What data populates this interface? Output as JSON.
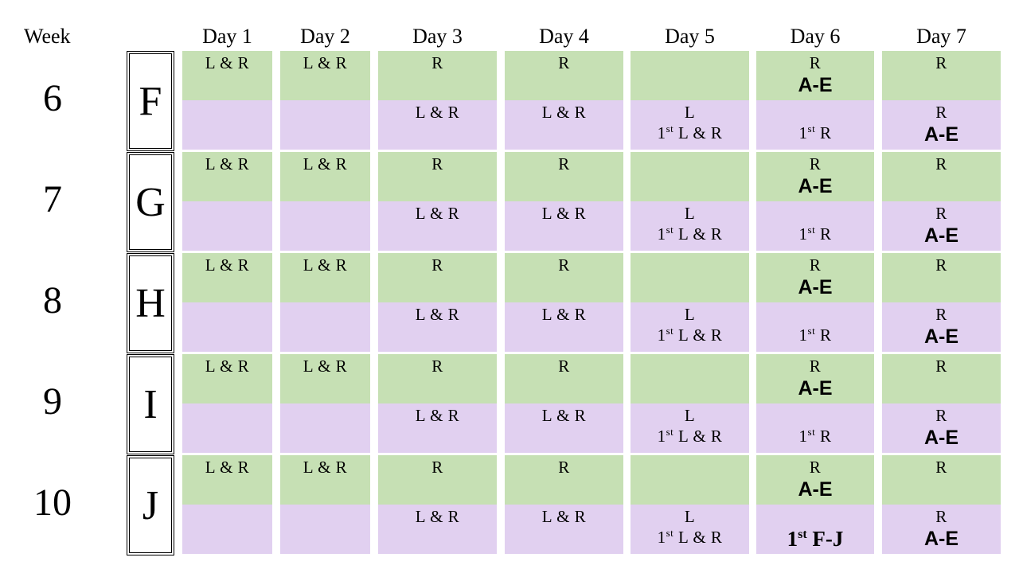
{
  "header": {
    "week_label": "Week",
    "days": [
      "Day 1",
      "Day 2",
      "Day 3",
      "Day 4",
      "Day 5",
      "Day 6",
      "Day 7"
    ]
  },
  "colors": {
    "green": "#c6e0b4",
    "purple": "#e1d0f0"
  },
  "weeks": [
    {
      "number": "6",
      "letter": "F",
      "last_day6_bottom": "1st R"
    },
    {
      "number": "7",
      "letter": "G",
      "last_day6_bottom": "1st R"
    },
    {
      "number": "8",
      "letter": "H",
      "last_day6_bottom": "1st R"
    },
    {
      "number": "9",
      "letter": "I",
      "last_day6_bottom": "1st R"
    },
    {
      "number": "10",
      "letter": "J",
      "last_day6_bottom": "1st F-J"
    }
  ],
  "cell_text": {
    "lr": "L & R",
    "r": "R",
    "l": "L",
    "first_lr": "1st L & R",
    "first_r": "1st R",
    "first_fj": "1st F-J",
    "ae": "A-E"
  }
}
